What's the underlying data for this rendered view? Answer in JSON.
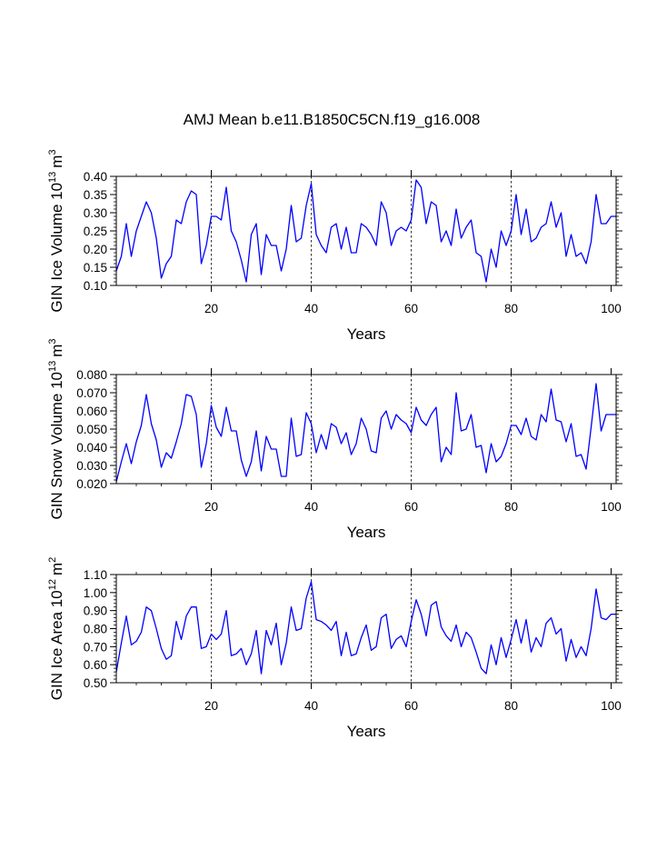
{
  "title": "AMJ Mean b.e11.B1850C5CN.f19_g16.008",
  "chart_data": [
    {
      "type": "line",
      "ylabel_base": "GIN Ice Volume 10",
      "ylabel_exp": "13",
      "ylabel_unit": "m",
      "ylabel_unit_exp": "3",
      "xlabel": "Years",
      "xlim": [
        1,
        101
      ],
      "ylim": [
        0.1,
        0.4
      ],
      "yticks": [
        0.1,
        0.15,
        0.2,
        0.25,
        0.3,
        0.35,
        0.4
      ],
      "ytick_labels": [
        "0.10",
        "0.15",
        "0.20",
        "0.25",
        "0.30",
        "0.35",
        "0.40"
      ],
      "xticks": [
        20,
        40,
        60,
        80,
        100
      ],
      "xtick_labels": [
        "20",
        "40",
        "60",
        "80",
        "100"
      ],
      "vlines": [
        20,
        40,
        60,
        80
      ],
      "line_color": "#0000ff",
      "x": [
        1,
        2,
        3,
        4,
        5,
        6,
        7,
        8,
        9,
        10,
        11,
        12,
        13,
        14,
        15,
        16,
        17,
        18,
        19,
        20,
        21,
        22,
        23,
        24,
        25,
        26,
        27,
        28,
        29,
        30,
        31,
        32,
        33,
        34,
        35,
        36,
        37,
        38,
        39,
        40,
        41,
        42,
        43,
        44,
        45,
        46,
        47,
        48,
        49,
        50,
        51,
        52,
        53,
        54,
        55,
        56,
        57,
        58,
        59,
        60,
        61,
        62,
        63,
        64,
        65,
        66,
        67,
        68,
        69,
        70,
        71,
        72,
        73,
        74,
        75,
        76,
        77,
        78,
        79,
        80,
        81,
        82,
        83,
        84,
        85,
        86,
        87,
        88,
        89,
        90,
        91,
        92,
        93,
        94,
        95,
        96,
        97,
        98,
        99,
        100,
        101
      ],
      "values": [
        0.14,
        0.18,
        0.27,
        0.18,
        0.25,
        0.29,
        0.33,
        0.3,
        0.23,
        0.12,
        0.16,
        0.18,
        0.28,
        0.27,
        0.33,
        0.36,
        0.35,
        0.16,
        0.21,
        0.29,
        0.29,
        0.28,
        0.37,
        0.25,
        0.22,
        0.17,
        0.11,
        0.24,
        0.27,
        0.13,
        0.24,
        0.21,
        0.21,
        0.14,
        0.2,
        0.32,
        0.22,
        0.23,
        0.32,
        0.38,
        0.24,
        0.21,
        0.19,
        0.26,
        0.27,
        0.2,
        0.26,
        0.19,
        0.19,
        0.27,
        0.26,
        0.24,
        0.21,
        0.33,
        0.3,
        0.21,
        0.25,
        0.26,
        0.25,
        0.28,
        0.39,
        0.37,
        0.27,
        0.33,
        0.32,
        0.22,
        0.25,
        0.21,
        0.31,
        0.23,
        0.26,
        0.28,
        0.19,
        0.18,
        0.11,
        0.2,
        0.15,
        0.25,
        0.21,
        0.25,
        0.35,
        0.24,
        0.31,
        0.22,
        0.23,
        0.26,
        0.27,
        0.33,
        0.26,
        0.3,
        0.18,
        0.24,
        0.18,
        0.19,
        0.16,
        0.22,
        0.35,
        0.27,
        0.27,
        0.29,
        0.29
      ]
    },
    {
      "type": "line",
      "ylabel_base": "GIN Snow Volume 10",
      "ylabel_exp": "13",
      "ylabel_unit": "m",
      "ylabel_unit_exp": "3",
      "xlabel": "Years",
      "xlim": [
        1,
        101
      ],
      "ylim": [
        0.02,
        0.08
      ],
      "yticks": [
        0.02,
        0.03,
        0.04,
        0.05,
        0.06,
        0.07,
        0.08
      ],
      "ytick_labels": [
        "0.020",
        "0.030",
        "0.040",
        "0.050",
        "0.060",
        "0.070",
        "0.080"
      ],
      "xticks": [
        20,
        40,
        60,
        80,
        100
      ],
      "xtick_labels": [
        "20",
        "40",
        "60",
        "80",
        "100"
      ],
      "vlines": [
        20,
        40,
        60,
        80
      ],
      "line_color": "#0000ff",
      "x": [
        1,
        2,
        3,
        4,
        5,
        6,
        7,
        8,
        9,
        10,
        11,
        12,
        13,
        14,
        15,
        16,
        17,
        18,
        19,
        20,
        21,
        22,
        23,
        24,
        25,
        26,
        27,
        28,
        29,
        30,
        31,
        32,
        33,
        34,
        35,
        36,
        37,
        38,
        39,
        40,
        41,
        42,
        43,
        44,
        45,
        46,
        47,
        48,
        49,
        50,
        51,
        52,
        53,
        54,
        55,
        56,
        57,
        58,
        59,
        60,
        61,
        62,
        63,
        64,
        65,
        66,
        67,
        68,
        69,
        70,
        71,
        72,
        73,
        74,
        75,
        76,
        77,
        78,
        79,
        80,
        81,
        82,
        83,
        84,
        85,
        86,
        87,
        88,
        89,
        90,
        91,
        92,
        93,
        94,
        95,
        96,
        97,
        98,
        99,
        100,
        101
      ],
      "values": [
        0.021,
        0.032,
        0.042,
        0.031,
        0.043,
        0.052,
        0.069,
        0.053,
        0.044,
        0.029,
        0.037,
        0.034,
        0.043,
        0.053,
        0.069,
        0.068,
        0.058,
        0.029,
        0.042,
        0.063,
        0.051,
        0.046,
        0.062,
        0.049,
        0.049,
        0.033,
        0.024,
        0.032,
        0.049,
        0.027,
        0.046,
        0.039,
        0.039,
        0.024,
        0.024,
        0.056,
        0.035,
        0.036,
        0.059,
        0.053,
        0.037,
        0.047,
        0.039,
        0.053,
        0.051,
        0.042,
        0.048,
        0.036,
        0.042,
        0.056,
        0.05,
        0.038,
        0.037,
        0.056,
        0.06,
        0.05,
        0.058,
        0.055,
        0.053,
        0.048,
        0.062,
        0.055,
        0.052,
        0.058,
        0.062,
        0.032,
        0.04,
        0.036,
        0.07,
        0.049,
        0.05,
        0.058,
        0.04,
        0.041,
        0.026,
        0.042,
        0.032,
        0.035,
        0.042,
        0.052,
        0.052,
        0.047,
        0.056,
        0.046,
        0.044,
        0.058,
        0.054,
        0.072,
        0.055,
        0.054,
        0.043,
        0.053,
        0.035,
        0.036,
        0.028,
        0.051,
        0.075,
        0.049,
        0.058,
        0.058,
        0.058
      ]
    },
    {
      "type": "line",
      "ylabel_base": "GIN Ice Area 10",
      "ylabel_exp": "12",
      "ylabel_unit": "m",
      "ylabel_unit_exp": "2",
      "xlabel": "Years",
      "xlim": [
        1,
        101
      ],
      "ylim": [
        0.5,
        1.1
      ],
      "yticks": [
        0.5,
        0.6,
        0.7,
        0.8,
        0.9,
        1.0,
        1.1
      ],
      "ytick_labels": [
        "0.50",
        "0.60",
        "0.70",
        "0.80",
        "0.90",
        "1.00",
        "1.10"
      ],
      "xticks": [
        20,
        40,
        60,
        80,
        100
      ],
      "xtick_labels": [
        "20",
        "40",
        "60",
        "80",
        "100"
      ],
      "vlines": [
        20,
        40,
        60,
        80
      ],
      "line_color": "#0000ff",
      "x": [
        1,
        2,
        3,
        4,
        5,
        6,
        7,
        8,
        9,
        10,
        11,
        12,
        13,
        14,
        15,
        16,
        17,
        18,
        19,
        20,
        21,
        22,
        23,
        24,
        25,
        26,
        27,
        28,
        29,
        30,
        31,
        32,
        33,
        34,
        35,
        36,
        37,
        38,
        39,
        40,
        41,
        42,
        43,
        44,
        45,
        46,
        47,
        48,
        49,
        50,
        51,
        52,
        53,
        54,
        55,
        56,
        57,
        58,
        59,
        60,
        61,
        62,
        63,
        64,
        65,
        66,
        67,
        68,
        69,
        70,
        71,
        72,
        73,
        74,
        75,
        76,
        77,
        78,
        79,
        80,
        81,
        82,
        83,
        84,
        85,
        86,
        87,
        88,
        89,
        90,
        91,
        92,
        93,
        94,
        95,
        96,
        97,
        98,
        99,
        100,
        101
      ],
      "values": [
        0.56,
        0.72,
        0.87,
        0.71,
        0.73,
        0.78,
        0.92,
        0.9,
        0.8,
        0.69,
        0.63,
        0.65,
        0.84,
        0.74,
        0.87,
        0.92,
        0.92,
        0.69,
        0.7,
        0.77,
        0.74,
        0.77,
        0.9,
        0.65,
        0.66,
        0.69,
        0.6,
        0.66,
        0.79,
        0.55,
        0.79,
        0.71,
        0.83,
        0.6,
        0.72,
        0.92,
        0.79,
        0.8,
        0.97,
        1.06,
        0.85,
        0.84,
        0.82,
        0.79,
        0.84,
        0.65,
        0.78,
        0.65,
        0.66,
        0.75,
        0.82,
        0.68,
        0.7,
        0.86,
        0.88,
        0.69,
        0.74,
        0.76,
        0.7,
        0.84,
        0.96,
        0.88,
        0.76,
        0.93,
        0.95,
        0.81,
        0.76,
        0.73,
        0.82,
        0.7,
        0.78,
        0.75,
        0.67,
        0.58,
        0.55,
        0.71,
        0.6,
        0.75,
        0.64,
        0.74,
        0.85,
        0.72,
        0.85,
        0.67,
        0.75,
        0.7,
        0.83,
        0.86,
        0.77,
        0.8,
        0.62,
        0.74,
        0.64,
        0.7,
        0.65,
        0.8,
        1.02,
        0.86,
        0.85,
        0.88,
        0.88
      ]
    }
  ]
}
